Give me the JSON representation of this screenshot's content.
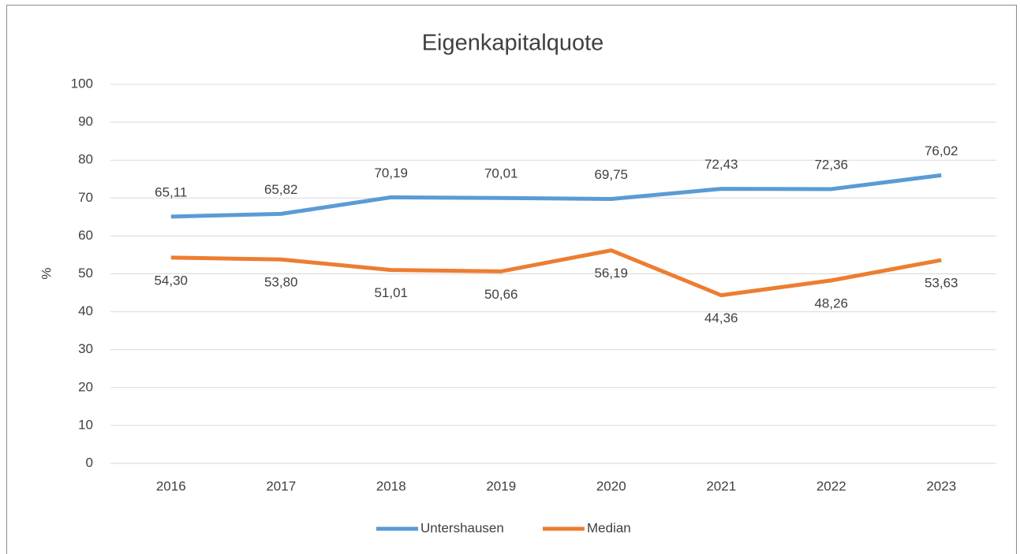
{
  "chart_data": {
    "type": "line",
    "title": "Eigenkapitalquote",
    "y_label": "%",
    "categories": [
      "2016",
      "2017",
      "2018",
      "2019",
      "2020",
      "2021",
      "2022",
      "2023"
    ],
    "series": [
      {
        "name": "Untershausen",
        "color": "#5b9bd5",
        "values": [
          65.11,
          65.82,
          70.19,
          70.01,
          69.75,
          72.43,
          72.36,
          76.02
        ],
        "value_labels": [
          "65,11",
          "65,82",
          "70,19",
          "70,01",
          "69,75",
          "72,43",
          "72,36",
          "76,02"
        ]
      },
      {
        "name": "Median",
        "color": "#ed7d31",
        "values": [
          54.3,
          53.8,
          51.01,
          50.66,
          56.19,
          44.36,
          48.26,
          53.63
        ],
        "value_labels": [
          "54,30",
          "53,80",
          "51,01",
          "50,66",
          "56,19",
          "44,36",
          "48,26",
          "53,63"
        ]
      }
    ],
    "ylim": [
      0,
      100
    ],
    "yticks": [
      0,
      10,
      20,
      30,
      40,
      50,
      60,
      70,
      80,
      90,
      100
    ],
    "grid": true,
    "legend": "bottom"
  }
}
